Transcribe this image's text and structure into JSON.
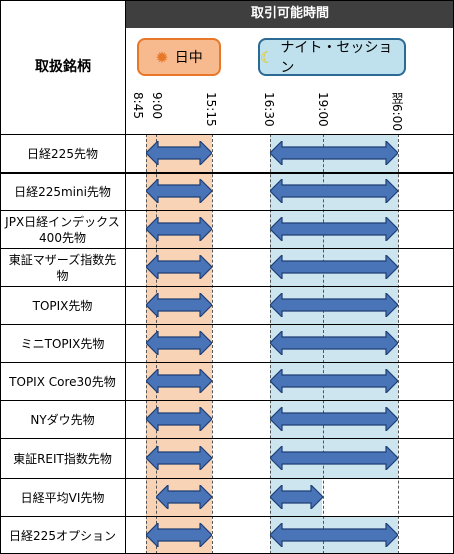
{
  "header": {
    "left_label": "取扱銘柄",
    "top_label": "取引可能時間",
    "day_badge": "日中",
    "night_badge": "ナイト・セッション",
    "day_icon": "sun-icon",
    "night_icon": "moon-icon"
  },
  "times": {
    "t0845": "8:45",
    "t0900": "9:00",
    "t1515": "15:15",
    "t1630": "16:30",
    "t1900": "19:00",
    "t0600": "翌6:00"
  },
  "colors": {
    "day_band": "#f9d3b5",
    "night_band": "#cce5ee",
    "arrow_fill": "#4a74b8",
    "arrow_stroke": "#1f3f75",
    "header_bar": "#3f3f3f"
  },
  "rows": [
    {
      "name": "日経225先物",
      "day": "8:45-15:15",
      "night": "16:30-6:00"
    },
    {
      "name": "日経225mini先物",
      "day": "8:45-15:15",
      "night": "16:30-6:00"
    },
    {
      "name": "JPX日経インデックス400先物",
      "day": "8:45-15:15",
      "night": "16:30-6:00"
    },
    {
      "name": "東証マザーズ指数先物",
      "day": "8:45-15:15",
      "night": "16:30-6:00"
    },
    {
      "name": "TOPIX先物",
      "day": "8:45-15:15",
      "night": "16:30-6:00"
    },
    {
      "name": "ミニTOPIX先物",
      "day": "8:45-15:15",
      "night": "16:30-6:00"
    },
    {
      "name": "TOPIX Core30先物",
      "day": "8:45-15:15",
      "night": "16:30-6:00"
    },
    {
      "name": "NYダウ先物",
      "day": "8:45-15:15",
      "night": "16:30-6:00"
    },
    {
      "name": "東証REIT指数先物",
      "day": "8:45-15:15",
      "night": "16:30-6:00"
    },
    {
      "name": "日経平均VI先物",
      "day": "9:00-15:15",
      "night": "16:30-19:00"
    },
    {
      "name": "日経225オプション",
      "day": "8:45-15:15",
      "night": "16:30-6:00"
    }
  ]
}
